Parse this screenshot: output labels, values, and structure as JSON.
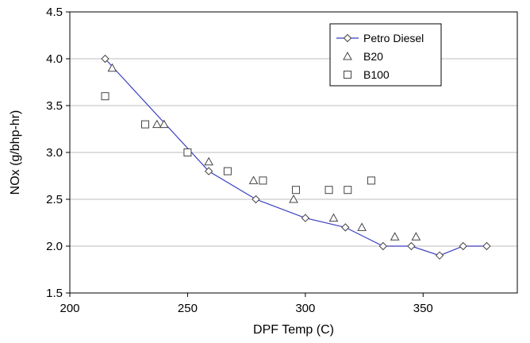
{
  "chart_data": {
    "type": "scatter",
    "xlabel": "DPF Temp (C)",
    "ylabel": "NOx (g/bhp-hr)",
    "xlim": [
      200,
      390
    ],
    "ylim": [
      1.5,
      4.5
    ],
    "x_ticks": [
      "200",
      "250",
      "300",
      "350"
    ],
    "x_tick_values": [
      200,
      250,
      300,
      350
    ],
    "y_ticks": [
      "1.5",
      "2.0",
      "2.5",
      "3.0",
      "3.5",
      "4.0",
      "4.5"
    ],
    "y_tick_values": [
      1.5,
      2.0,
      2.5,
      3.0,
      3.5,
      4.0,
      4.5
    ],
    "grid": "horizontal",
    "legend_position": "top-right",
    "series": [
      {
        "name": "Petro Diesel",
        "marker": "diamond",
        "line": true,
        "color": "#3a3fbf",
        "x": [
          215,
          259,
          279,
          300,
          317,
          333,
          345,
          357,
          367,
          377
        ],
        "y": [
          4.0,
          2.8,
          2.5,
          2.3,
          2.2,
          2.0,
          2.0,
          1.9,
          2.0,
          2.0
        ]
      },
      {
        "name": "B20",
        "marker": "triangle",
        "line": false,
        "x": [
          218,
          237,
          240,
          259,
          278,
          295,
          312,
          324,
          338,
          347
        ],
        "y": [
          3.9,
          3.3,
          3.3,
          2.9,
          2.7,
          2.5,
          2.3,
          2.2,
          2.1,
          2.1
        ]
      },
      {
        "name": "B100",
        "marker": "square",
        "line": false,
        "x": [
          215,
          232,
          250,
          267,
          282,
          296,
          310,
          318,
          328
        ],
        "y": [
          3.6,
          3.3,
          3.0,
          2.8,
          2.7,
          2.6,
          2.6,
          2.6,
          2.7
        ]
      }
    ]
  }
}
